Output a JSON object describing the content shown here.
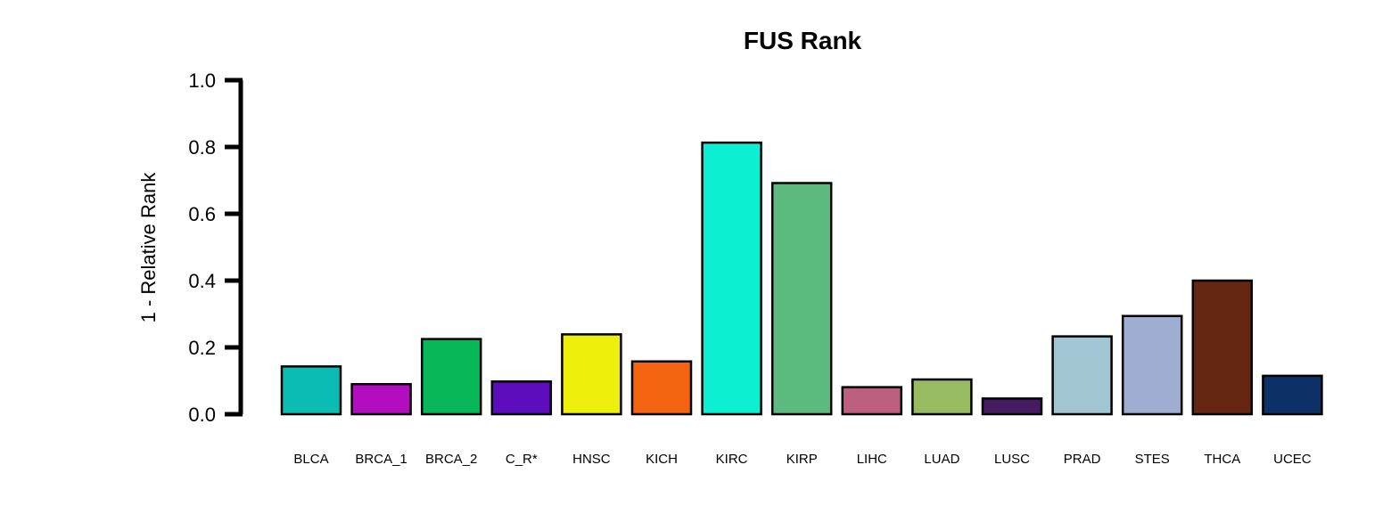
{
  "chart_data": {
    "type": "bar",
    "title": "FUS Rank",
    "xlabel": "",
    "ylabel": "1 - Relative Rank",
    "ylim": [
      0,
      1.0
    ],
    "yticks": [
      "0.0",
      "0.2",
      "0.4",
      "0.6",
      "0.8",
      "1.0"
    ],
    "grid": false,
    "legend": "none",
    "categories": [
      "BLCA",
      "BRCA_1",
      "BRCA_2",
      "C_R*",
      "HNSC",
      "KICH",
      "KIRC",
      "KIRP",
      "LIHC",
      "LUAD",
      "LUSC",
      "PRAD",
      "STES",
      "THCA",
      "UCEC"
    ],
    "values": [
      0.143,
      0.09,
      0.225,
      0.098,
      0.239,
      0.158,
      0.813,
      0.692,
      0.081,
      0.104,
      0.047,
      0.233,
      0.294,
      0.4,
      0.115
    ],
    "colors": [
      "#0bbcb4",
      "#b20ec0",
      "#08b858",
      "#5c0cbc",
      "#eef00c",
      "#f36310",
      "#0cefd2",
      "#5ebb80",
      "#bd6080",
      "#97bb60",
      "#461b62",
      "#a1c5d2",
      "#9eadd0",
      "#652612",
      "#0d3066"
    ],
    "bar_edge_color": "#000000"
  }
}
